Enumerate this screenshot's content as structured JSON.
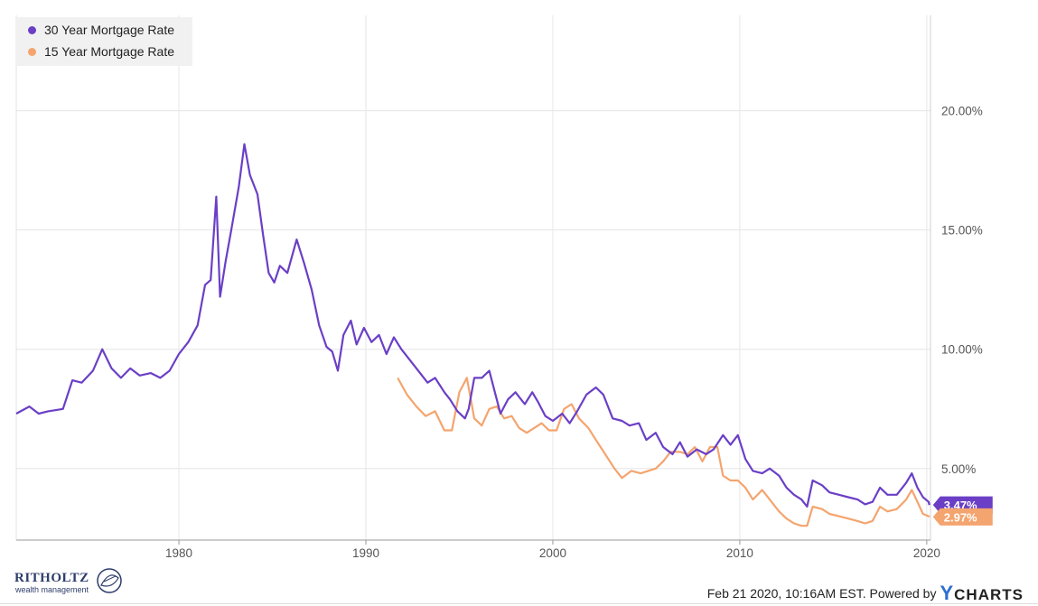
{
  "chart_data": {
    "type": "line",
    "x_unit": "year",
    "xlim": [
      1971.3,
      2020.2
    ],
    "ylim": [
      2.0,
      24.0
    ],
    "x_ticks": [
      1980,
      1990,
      2000,
      2010,
      2020
    ],
    "x_tick_labels": [
      "1980",
      "1990",
      "2000",
      "2010",
      "2020"
    ],
    "y_ticks": [
      5,
      10,
      15,
      20
    ],
    "y_tick_labels": [
      "5.00%",
      "10.00%",
      "15.00%",
      "20.00%"
    ],
    "grid": true,
    "legend_position": "top-left",
    "series": [
      {
        "name": "30 Year Mortgage Rate",
        "color": "#6a3fc6",
        "last_label": "3.47%",
        "points": [
          [
            1971.3,
            7.3
          ],
          [
            1972.0,
            7.6
          ],
          [
            1972.5,
            7.3
          ],
          [
            1973.0,
            7.4
          ],
          [
            1973.8,
            7.5
          ],
          [
            1974.3,
            8.7
          ],
          [
            1974.8,
            8.6
          ],
          [
            1975.4,
            9.1
          ],
          [
            1975.9,
            10.0
          ],
          [
            1976.4,
            9.2
          ],
          [
            1976.9,
            8.8
          ],
          [
            1977.4,
            9.2
          ],
          [
            1977.9,
            8.9
          ],
          [
            1978.5,
            9.0
          ],
          [
            1979.0,
            8.8
          ],
          [
            1979.5,
            9.1
          ],
          [
            1980.0,
            9.8
          ],
          [
            1980.5,
            10.3
          ],
          [
            1981.0,
            11.0
          ],
          [
            1981.4,
            12.7
          ],
          [
            1981.7,
            12.9
          ],
          [
            1982.0,
            16.4
          ],
          [
            1982.2,
            12.2
          ],
          [
            1982.5,
            13.7
          ],
          [
            1982.8,
            15.0
          ],
          [
            1983.2,
            16.8
          ],
          [
            1983.5,
            18.6
          ],
          [
            1983.8,
            17.3
          ],
          [
            1984.2,
            16.5
          ],
          [
            1984.5,
            14.8
          ],
          [
            1984.8,
            13.2
          ],
          [
            1985.1,
            12.8
          ],
          [
            1985.4,
            13.5
          ],
          [
            1985.8,
            13.2
          ],
          [
            1986.3,
            14.6
          ],
          [
            1986.7,
            13.6
          ],
          [
            1987.1,
            12.5
          ],
          [
            1987.5,
            11.0
          ],
          [
            1987.9,
            10.1
          ],
          [
            1988.2,
            9.9
          ],
          [
            1988.5,
            9.1
          ],
          [
            1988.8,
            10.6
          ],
          [
            1989.2,
            11.2
          ],
          [
            1989.5,
            10.2
          ],
          [
            1989.9,
            10.9
          ],
          [
            1990.3,
            10.3
          ],
          [
            1990.7,
            10.6
          ],
          [
            1991.1,
            9.8
          ],
          [
            1991.5,
            10.5
          ],
          [
            1991.9,
            10.0
          ],
          [
            1992.4,
            9.5
          ],
          [
            1992.9,
            9.0
          ],
          [
            1993.3,
            8.6
          ],
          [
            1993.7,
            8.8
          ],
          [
            1994.2,
            8.2
          ],
          [
            1994.5,
            7.9
          ],
          [
            1994.9,
            7.4
          ],
          [
            1995.3,
            7.1
          ],
          [
            1995.5,
            7.5
          ],
          [
            1995.8,
            8.8
          ],
          [
            1996.2,
            8.8
          ],
          [
            1996.6,
            9.1
          ],
          [
            1996.9,
            8.2
          ],
          [
            1997.2,
            7.3
          ],
          [
            1997.6,
            7.9
          ],
          [
            1998.0,
            8.2
          ],
          [
            1998.5,
            7.7
          ],
          [
            1998.9,
            8.2
          ],
          [
            1999.2,
            7.8
          ],
          [
            1999.6,
            7.2
          ],
          [
            2000.0,
            7.0
          ],
          [
            2000.5,
            7.3
          ],
          [
            2000.9,
            6.9
          ],
          [
            2001.3,
            7.4
          ],
          [
            2001.8,
            8.1
          ],
          [
            2002.3,
            8.4
          ],
          [
            2002.7,
            8.1
          ],
          [
            2003.2,
            7.1
          ],
          [
            2003.7,
            7.0
          ],
          [
            2004.1,
            6.8
          ],
          [
            2004.6,
            6.9
          ],
          [
            2005.0,
            6.2
          ],
          [
            2005.5,
            6.5
          ],
          [
            2005.9,
            5.9
          ],
          [
            2006.4,
            5.6
          ],
          [
            2006.8,
            6.1
          ],
          [
            2007.2,
            5.5
          ],
          [
            2007.7,
            5.8
          ],
          [
            2008.2,
            5.6
          ],
          [
            2008.6,
            5.8
          ],
          [
            2009.1,
            6.4
          ],
          [
            2009.5,
            6.0
          ],
          [
            2009.9,
            6.4
          ],
          [
            2010.3,
            5.4
          ],
          [
            2010.7,
            4.9
          ],
          [
            2011.2,
            4.8
          ],
          [
            2011.6,
            5.0
          ],
          [
            2012.1,
            4.7
          ],
          [
            2012.5,
            4.2
          ],
          [
            2012.9,
            3.9
          ],
          [
            2013.3,
            3.7
          ],
          [
            2013.6,
            3.4
          ],
          [
            2013.9,
            4.5
          ],
          [
            2014.4,
            4.3
          ],
          [
            2014.8,
            4.0
          ],
          [
            2015.3,
            3.9
          ],
          [
            2015.8,
            3.8
          ],
          [
            2016.3,
            3.7
          ],
          [
            2016.7,
            3.5
          ],
          [
            2017.1,
            3.6
          ],
          [
            2017.5,
            4.2
          ],
          [
            2017.9,
            3.9
          ],
          [
            2018.4,
            3.9
          ],
          [
            2018.9,
            4.4
          ],
          [
            2019.2,
            4.8
          ],
          [
            2019.5,
            4.2
          ],
          [
            2019.8,
            3.8
          ],
          [
            2020.1,
            3.6
          ],
          [
            2020.14,
            3.47
          ]
        ]
      },
      {
        "name": "15 Year Mortgage Rate",
        "color": "#f4a46e",
        "last_label": "2.97%",
        "points": [
          [
            1991.7,
            8.8
          ],
          [
            1992.2,
            8.1
          ],
          [
            1992.7,
            7.6
          ],
          [
            1993.2,
            7.2
          ],
          [
            1993.7,
            7.4
          ],
          [
            1994.2,
            6.6
          ],
          [
            1994.6,
            6.6
          ],
          [
            1995.0,
            8.2
          ],
          [
            1995.4,
            8.8
          ],
          [
            1995.8,
            7.1
          ],
          [
            1996.2,
            6.8
          ],
          [
            1996.6,
            7.5
          ],
          [
            1997.0,
            7.6
          ],
          [
            1997.4,
            7.1
          ],
          [
            1997.8,
            7.2
          ],
          [
            1998.2,
            6.7
          ],
          [
            1998.6,
            6.5
          ],
          [
            1999.0,
            6.7
          ],
          [
            1999.4,
            6.9
          ],
          [
            1999.8,
            6.6
          ],
          [
            2000.2,
            6.6
          ],
          [
            2000.6,
            7.5
          ],
          [
            2001.0,
            7.7
          ],
          [
            2001.4,
            7.1
          ],
          [
            2001.9,
            6.7
          ],
          [
            2002.3,
            6.2
          ],
          [
            2002.8,
            5.6
          ],
          [
            2003.3,
            5.0
          ],
          [
            2003.7,
            4.6
          ],
          [
            2004.2,
            4.9
          ],
          [
            2004.7,
            4.8
          ],
          [
            2005.1,
            4.9
          ],
          [
            2005.5,
            5.0
          ],
          [
            2005.9,
            5.3
          ],
          [
            2006.3,
            5.7
          ],
          [
            2006.8,
            5.7
          ],
          [
            2007.2,
            5.6
          ],
          [
            2007.6,
            5.9
          ],
          [
            2008.0,
            5.3
          ],
          [
            2008.4,
            5.9
          ],
          [
            2008.8,
            5.9
          ],
          [
            2009.1,
            4.7
          ],
          [
            2009.5,
            4.5
          ],
          [
            2009.9,
            4.5
          ],
          [
            2010.3,
            4.2
          ],
          [
            2010.7,
            3.7
          ],
          [
            2011.2,
            4.1
          ],
          [
            2011.6,
            3.7
          ],
          [
            2012.1,
            3.2
          ],
          [
            2012.5,
            2.9
          ],
          [
            2012.9,
            2.7
          ],
          [
            2013.3,
            2.6
          ],
          [
            2013.6,
            2.6
          ],
          [
            2013.9,
            3.4
          ],
          [
            2014.4,
            3.3
          ],
          [
            2014.8,
            3.1
          ],
          [
            2015.3,
            3.0
          ],
          [
            2015.8,
            2.9
          ],
          [
            2016.3,
            2.8
          ],
          [
            2016.7,
            2.7
          ],
          [
            2017.1,
            2.8
          ],
          [
            2017.5,
            3.4
          ],
          [
            2017.9,
            3.2
          ],
          [
            2018.4,
            3.3
          ],
          [
            2018.9,
            3.7
          ],
          [
            2019.2,
            4.1
          ],
          [
            2019.5,
            3.6
          ],
          [
            2019.8,
            3.1
          ],
          [
            2020.1,
            3.0
          ],
          [
            2020.14,
            2.97
          ]
        ]
      }
    ]
  },
  "footer": {
    "timestamp": "Feb 21 2020, 10:16AM EST. Powered by",
    "ycharts_logo": "YCHARTS",
    "brand_name": "RITHOLTZ",
    "brand_sub": "wealth management"
  }
}
